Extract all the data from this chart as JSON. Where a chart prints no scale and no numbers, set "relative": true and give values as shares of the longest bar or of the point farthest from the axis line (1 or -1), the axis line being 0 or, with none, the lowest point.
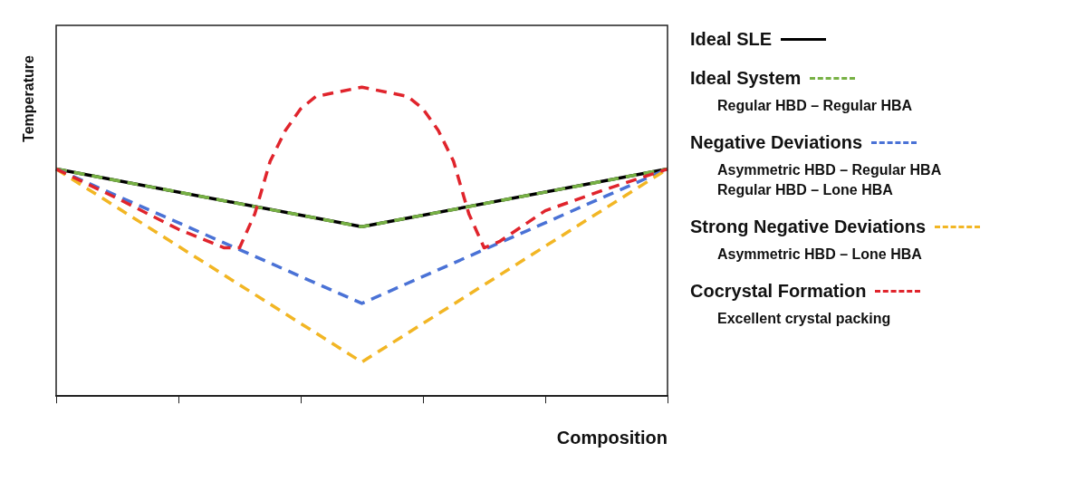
{
  "chart_data": {
    "type": "line",
    "relative": true,
    "xlabel": "Composition",
    "ylabel": "Temperature",
    "legend": "right",
    "line_style": "dashed",
    "categories": [
      null,
      null,
      null,
      null,
      null,
      null,
      null,
      null,
      null,
      null,
      null,
      null,
      null,
      null,
      null,
      null,
      null,
      null,
      null,
      null,
      null,
      null,
      null,
      null,
      null,
      null,
      null,
      null,
      null,
      null,
      null,
      null,
      null,
      null,
      null,
      null,
      null,
      null,
      null,
      null,
      null
    ],
    "series": [
      {
        "name": "Ideal SLE",
        "color": "#000000",
        "line_style": "solid",
        "values": [
          0.735,
          null,
          null,
          null,
          null,
          null,
          null,
          null,
          null,
          null,
          null,
          null,
          null,
          null,
          null,
          null,
          null,
          null,
          null,
          null,
          0.548,
          null,
          null,
          null,
          null,
          null,
          null,
          null,
          null,
          null,
          null,
          null,
          null,
          null,
          null,
          null,
          null,
          null,
          null,
          null,
          0.735
        ]
      },
      {
        "name": "Ideal System",
        "color": "#77b144",
        "values": [
          0.735,
          null,
          null,
          null,
          null,
          null,
          null,
          null,
          null,
          null,
          null,
          null,
          null,
          null,
          null,
          null,
          null,
          null,
          null,
          null,
          0.548,
          null,
          null,
          null,
          null,
          null,
          null,
          null,
          null,
          null,
          null,
          null,
          null,
          null,
          null,
          null,
          null,
          null,
          null,
          null,
          0.735
        ]
      },
      {
        "name": "Negative Deviations",
        "color": "#4a72d6",
        "values": [
          0.735,
          null,
          null,
          null,
          null,
          null,
          null,
          null,
          null,
          null,
          null,
          null,
          null,
          null,
          null,
          null,
          null,
          null,
          null,
          null,
          0.3,
          null,
          null,
          null,
          null,
          null,
          null,
          null,
          null,
          null,
          null,
          null,
          null,
          null,
          null,
          null,
          null,
          null,
          null,
          null,
          0.735
        ]
      },
      {
        "name": "Strong Negative Deviations",
        "color": "#f2b624",
        "values": [
          0.735,
          null,
          null,
          null,
          null,
          null,
          null,
          null,
          null,
          null,
          null,
          null,
          null,
          null,
          null,
          null,
          null,
          null,
          null,
          null,
          0.11,
          null,
          null,
          null,
          null,
          null,
          null,
          null,
          null,
          null,
          null,
          null,
          null,
          null,
          null,
          null,
          null,
          null,
          null,
          null,
          0.735
        ]
      },
      {
        "name": "Cocrystal Formation",
        "color": "#e0242c",
        "values": [
          0.735,
          null,
          null,
          null,
          0.64,
          null,
          null,
          null,
          0.54,
          null,
          null,
          0.48,
          0.48,
          0.59,
          0.76,
          0.86,
          0.93,
          0.97,
          null,
          null,
          1,
          null,
          null,
          0.97,
          0.93,
          0.86,
          0.76,
          0.59,
          0.48,
          0.5,
          null,
          null,
          0.6,
          null,
          null,
          null,
          0.67,
          null,
          null,
          null,
          0.735
        ]
      }
    ],
    "annotations": [
      "Regular HBD – Regular HBA",
      "Asymmetric HBD – Regular HBA",
      "Regular HBD – Lone HBA",
      "Asymmetric HBD – Lone HBA",
      "Excellent crystal packing"
    ]
  }
}
